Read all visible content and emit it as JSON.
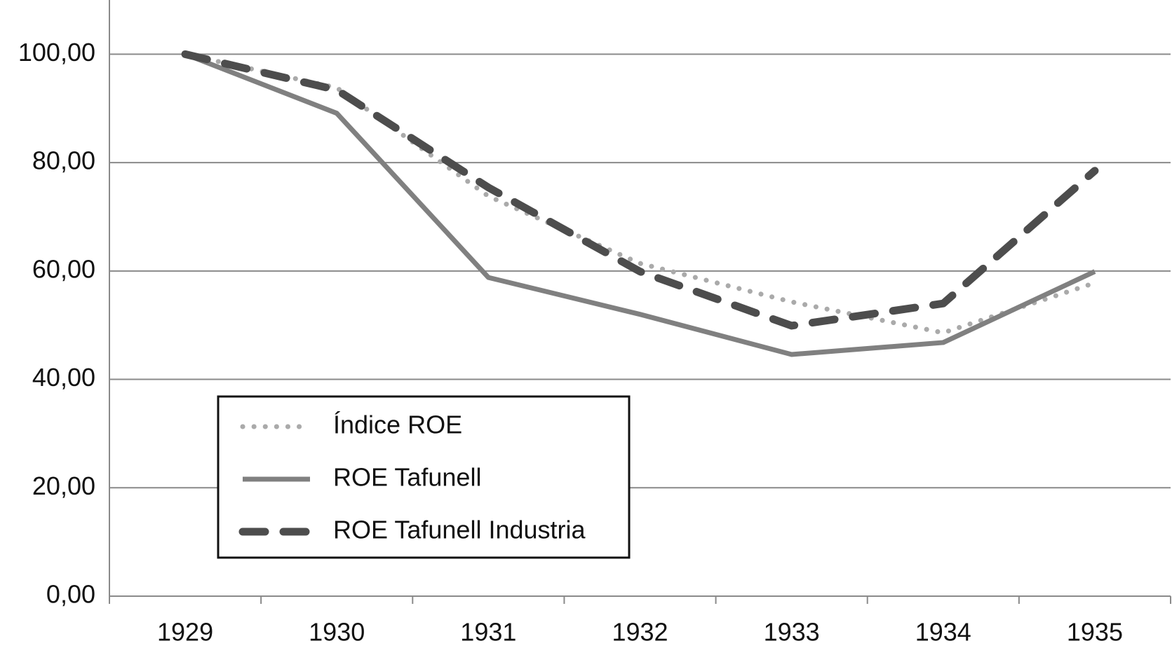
{
  "chart_data": {
    "type": "line",
    "categories": [
      "1929",
      "1930",
      "1931",
      "1932",
      "1933",
      "1934",
      "1935"
    ],
    "series": [
      {
        "name": "Índice ROE",
        "color": "#aaaaaa",
        "style": "dotted",
        "values": [
          100,
          93.8,
          73.8,
          61.4,
          54.3,
          48.6,
          57.8
        ]
      },
      {
        "name": "ROE Tafunell",
        "color": "#808080",
        "style": "solid",
        "values": [
          100,
          89.1,
          58.8,
          52,
          44.6,
          46.8,
          59.9
        ]
      },
      {
        "name": "ROE Tafunell Industria",
        "color": "#4d4d4d",
        "style": "dashed",
        "values": [
          100,
          93.4,
          75.4,
          59.9,
          49.9,
          54,
          78.5
        ]
      }
    ],
    "ylim": [
      0,
      110
    ],
    "yticks": [
      {
        "value": 0,
        "label": "0,00"
      },
      {
        "value": 20,
        "label": "20,00"
      },
      {
        "value": 40,
        "label": "40,00"
      },
      {
        "value": 60,
        "label": "60,00"
      },
      {
        "value": 80,
        "label": "80,00"
      },
      {
        "value": 100,
        "label": "100,00"
      }
    ],
    "grid": true
  }
}
